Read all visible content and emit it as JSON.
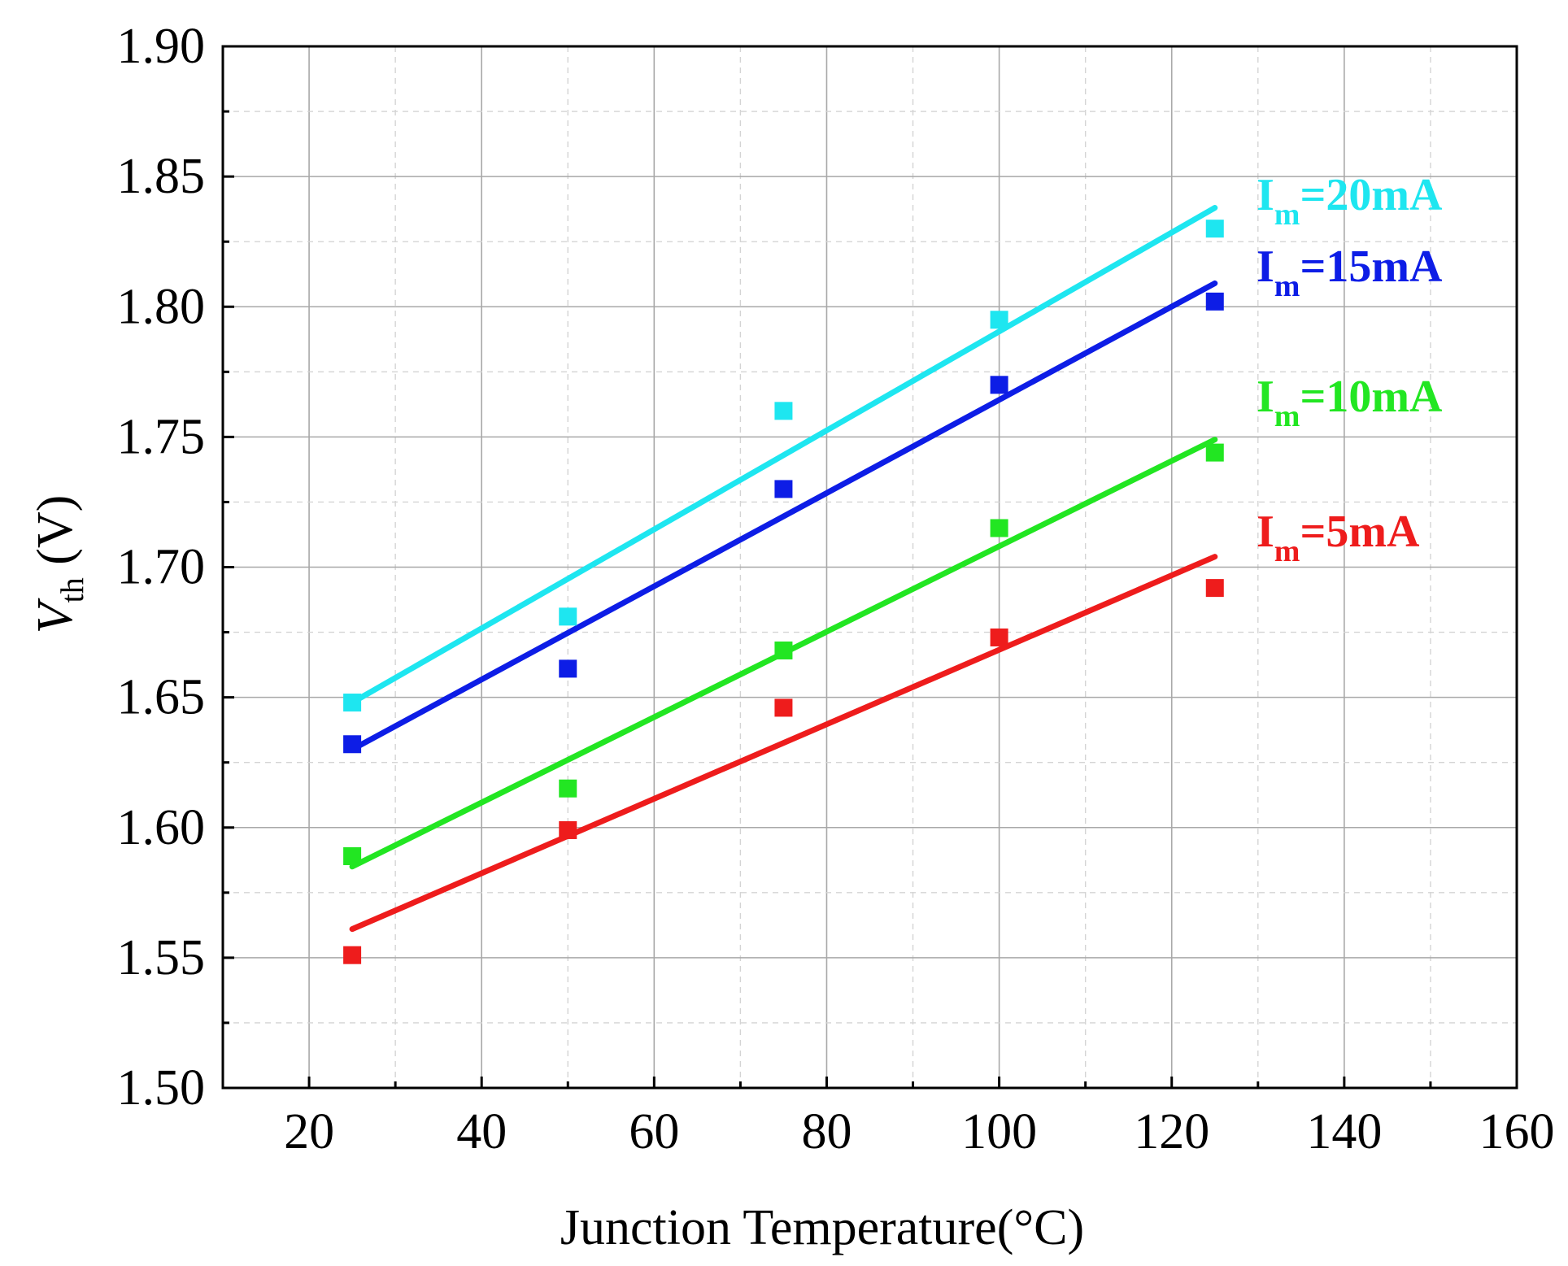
{
  "chart_data": {
    "type": "scatter",
    "title": "",
    "xlabel": "Junction Temperature(°C)",
    "ylabel_main": "V",
    "ylabel_sub": "th",
    "ylabel_unit": " (V)",
    "xlim": [
      10,
      160
    ],
    "ylim": [
      1.5,
      1.9
    ],
    "xticks": [
      20,
      40,
      60,
      80,
      100,
      120,
      140,
      160
    ],
    "yticks": [
      1.5,
      1.55,
      1.6,
      1.65,
      1.7,
      1.75,
      1.8,
      1.85,
      1.9
    ],
    "grid": true,
    "x": [
      25,
      50,
      75,
      100,
      125
    ],
    "series": [
      {
        "name": "Im=20mA",
        "label_main": "I",
        "label_sub": "m",
        "label_rest": "=20mA",
        "color": "#1ee6f0",
        "values": [
          1.648,
          1.681,
          1.76,
          1.795,
          1.83
        ],
        "fit": {
          "x0": 25,
          "y0": 1.648,
          "x1": 125,
          "y1": 1.838
        }
      },
      {
        "name": "Im=15mA",
        "label_main": "I",
        "label_sub": "m",
        "label_rest": "=15mA",
        "color": "#0d1de6",
        "values": [
          1.632,
          1.661,
          1.73,
          1.77,
          1.802
        ],
        "fit": {
          "x0": 25,
          "y0": 1.63,
          "x1": 125,
          "y1": 1.809
        }
      },
      {
        "name": "Im=10mA",
        "label_main": "I",
        "label_sub": "m",
        "label_rest": "=10mA",
        "color": "#22e622",
        "values": [
          1.589,
          1.615,
          1.668,
          1.715,
          1.744
        ],
        "fit": {
          "x0": 25,
          "y0": 1.585,
          "x1": 125,
          "y1": 1.749
        }
      },
      {
        "name": "Im=5mA",
        "label_main": "I",
        "label_sub": "m",
        "label_rest": "=5mA",
        "color": "#ee1c1c",
        "values": [
          1.551,
          1.599,
          1.646,
          1.673,
          1.692
        ],
        "fit": {
          "x0": 25,
          "y0": 1.561,
          "x1": 125,
          "y1": 1.704
        }
      }
    ]
  }
}
